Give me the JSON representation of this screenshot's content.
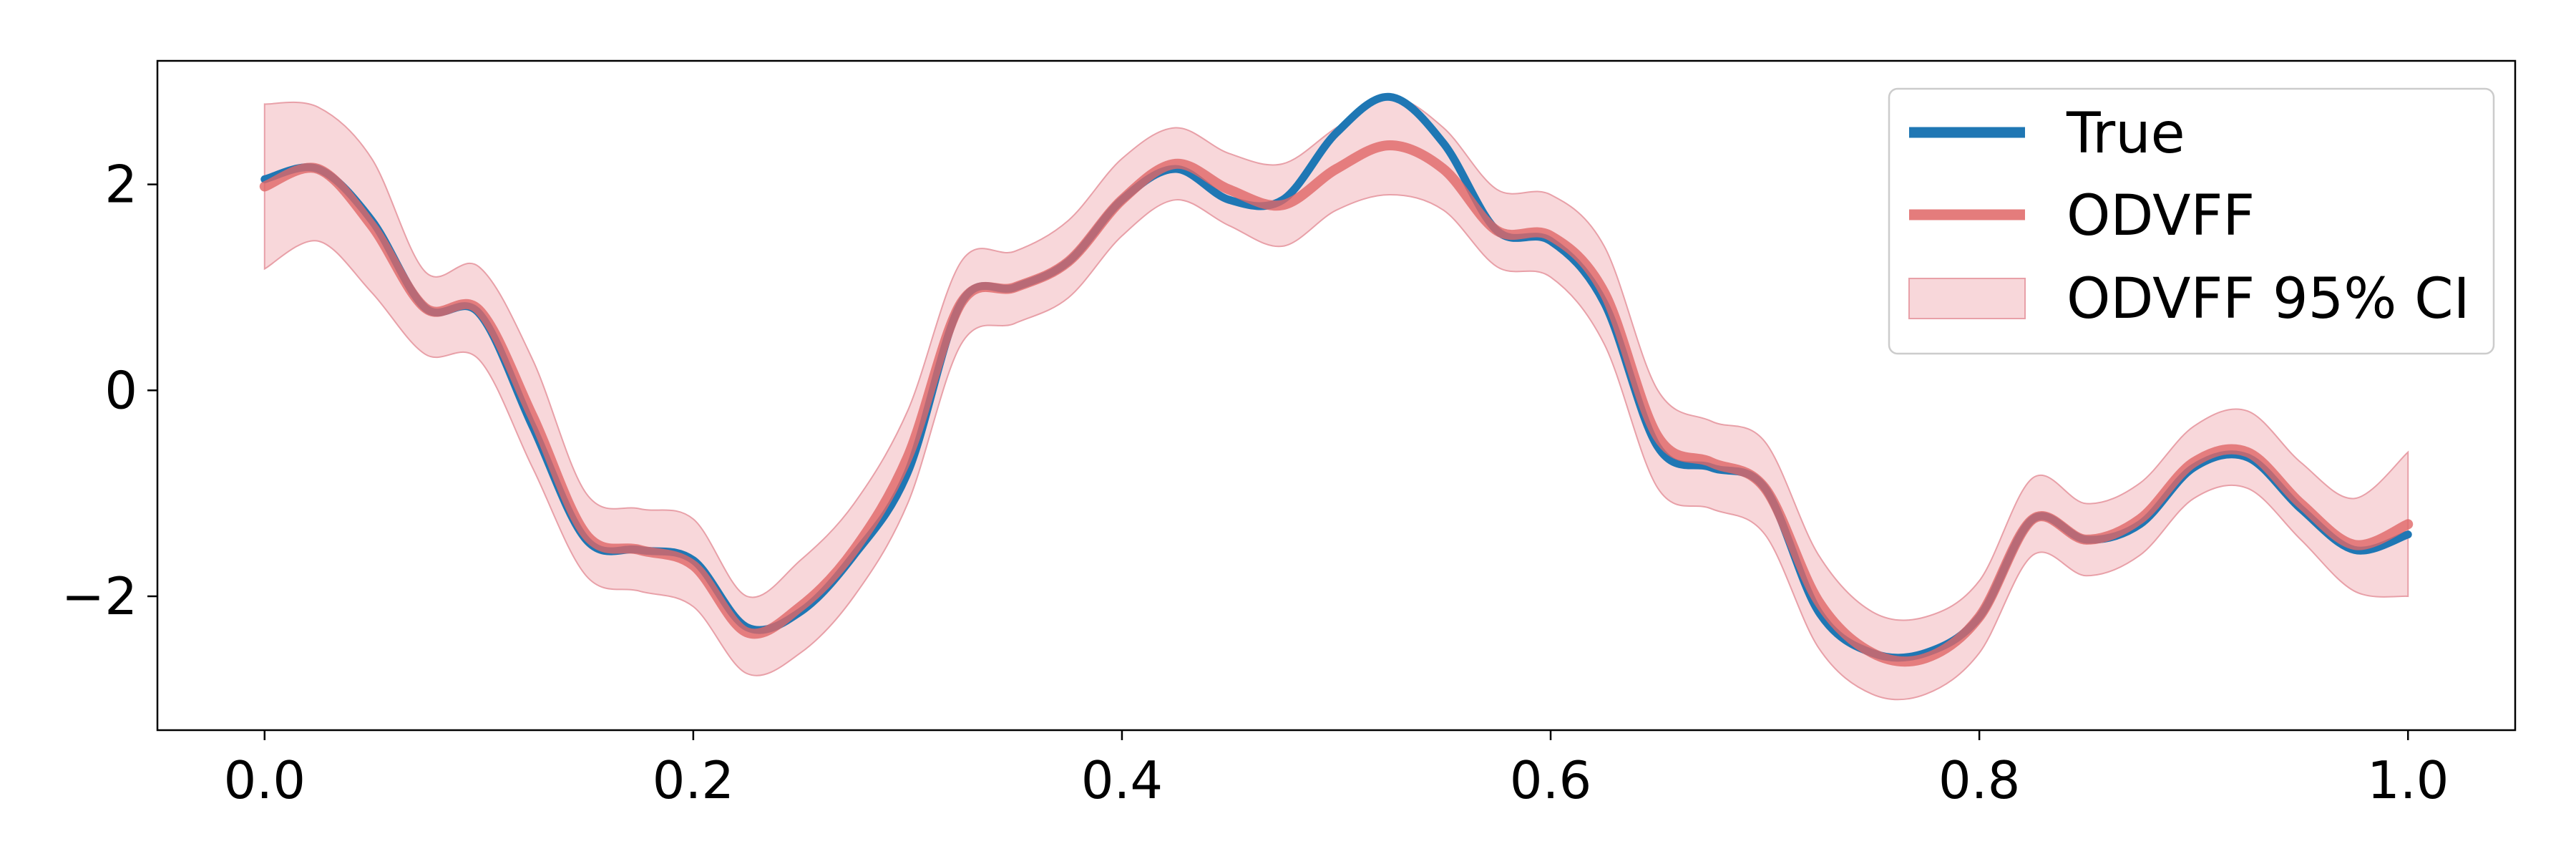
{
  "chart_data": {
    "type": "line",
    "title": "",
    "xlabel": "",
    "ylabel": "",
    "xlim": [
      -0.05,
      1.05
    ],
    "ylim": [
      -3.3,
      3.2
    ],
    "grid": false,
    "legend_placement": "top-right",
    "x_ticks": [
      0.0,
      0.2,
      0.4,
      0.6,
      0.8,
      1.0
    ],
    "x_tick_labels": [
      "0.0",
      "0.2",
      "0.4",
      "0.6",
      "0.8",
      "1.0"
    ],
    "y_ticks": [
      -2,
      0,
      2
    ],
    "y_tick_labels": [
      "−2",
      "0",
      "2"
    ],
    "x": [
      0.0,
      0.025,
      0.05,
      0.075,
      0.1,
      0.125,
      0.15,
      0.175,
      0.2,
      0.225,
      0.25,
      0.275,
      0.3,
      0.325,
      0.35,
      0.375,
      0.4,
      0.425,
      0.45,
      0.475,
      0.5,
      0.525,
      0.55,
      0.575,
      0.6,
      0.625,
      0.65,
      0.675,
      0.7,
      0.725,
      0.75,
      0.775,
      0.8,
      0.825,
      0.85,
      0.875,
      0.9,
      0.925,
      0.95,
      0.975,
      1.0
    ],
    "series": [
      {
        "name": "True",
        "color": "#1f77b4",
        "values": [
          2.05,
          2.15,
          1.65,
          0.8,
          0.75,
          -0.35,
          -1.45,
          -1.55,
          -1.65,
          -2.3,
          -2.15,
          -1.6,
          -0.8,
          0.85,
          1.0,
          1.25,
          1.85,
          2.15,
          1.85,
          1.85,
          2.5,
          2.85,
          2.4,
          1.55,
          1.45,
          0.85,
          -0.55,
          -0.75,
          -0.95,
          -2.15,
          -2.55,
          -2.55,
          -2.2,
          -1.25,
          -1.45,
          -1.3,
          -0.75,
          -0.65,
          -1.15,
          -1.55,
          -1.4
        ]
      },
      {
        "name": "ODVFF",
        "color": "#e06666",
        "values": [
          1.98,
          2.15,
          1.6,
          0.8,
          0.78,
          -0.25,
          -1.4,
          -1.55,
          -1.7,
          -2.35,
          -2.1,
          -1.55,
          -0.65,
          0.85,
          1.0,
          1.25,
          1.85,
          2.2,
          1.95,
          1.8,
          2.15,
          2.38,
          2.15,
          1.55,
          1.5,
          0.95,
          -0.45,
          -0.7,
          -0.95,
          -2.05,
          -2.55,
          -2.6,
          -2.2,
          -1.25,
          -1.45,
          -1.25,
          -0.7,
          -0.6,
          -1.1,
          -1.5,
          -1.3
        ]
      }
    ],
    "confidence_band": {
      "name": "ODVFF 95% CI",
      "color": "#f4c2c6",
      "lower": [
        1.18,
        1.45,
        0.95,
        0.35,
        0.3,
        -0.75,
        -1.8,
        -1.95,
        -2.1,
        -2.75,
        -2.55,
        -2.0,
        -1.1,
        0.45,
        0.65,
        0.9,
        1.5,
        1.85,
        1.6,
        1.4,
        1.75,
        1.9,
        1.75,
        1.2,
        1.1,
        0.45,
        -0.95,
        -1.15,
        -1.4,
        -2.5,
        -2.95,
        -2.95,
        -2.55,
        -1.6,
        -1.8,
        -1.6,
        -1.05,
        -0.95,
        -1.45,
        -1.95,
        -2.0
      ],
      "upper": [
        2.78,
        2.75,
        2.25,
        1.15,
        1.2,
        0.3,
        -1.0,
        -1.15,
        -1.25,
        -2.0,
        -1.65,
        -1.1,
        -0.2,
        1.25,
        1.35,
        1.65,
        2.25,
        2.55,
        2.3,
        2.2,
        2.55,
        2.85,
        2.55,
        1.95,
        1.9,
        1.4,
        0.0,
        -0.3,
        -0.5,
        -1.6,
        -2.15,
        -2.2,
        -1.85,
        -0.85,
        -1.1,
        -0.9,
        -0.35,
        -0.2,
        -0.7,
        -1.05,
        -0.6
      ]
    }
  }
}
